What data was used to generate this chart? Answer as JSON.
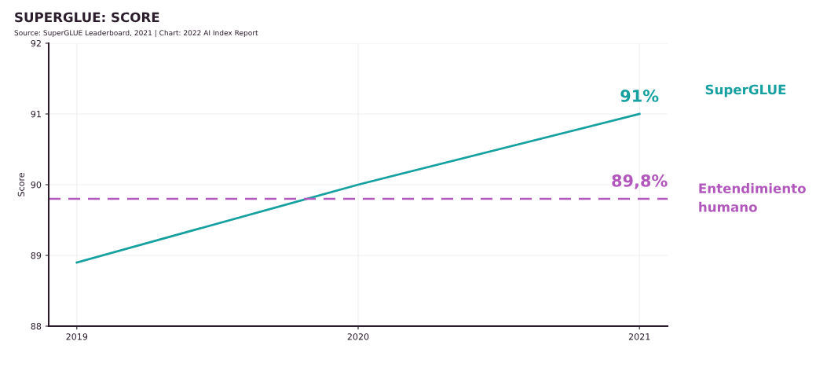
{
  "chart_data": {
    "type": "line",
    "title": "SUPERGLUE: SCORE",
    "subtitle": "Source: SuperGLUE Leaderboard, 2021 | Chart: 2022 AI Index Report",
    "ylabel": "Score",
    "x": [
      2019,
      2020,
      2021
    ],
    "series": [
      {
        "name": "SuperGLUE",
        "color": "#17a0a0",
        "values": [
          88.9,
          90.0,
          91.0
        ]
      }
    ],
    "xlim": [
      2018.9,
      2021.1
    ],
    "xticks": [
      2019,
      2020,
      2021
    ],
    "ylim": [
      88,
      92
    ],
    "yticks": [
      88,
      89,
      90,
      91,
      92
    ],
    "grid": true,
    "marker": "none",
    "line_style": "solid",
    "ref_lines": [
      {
        "axis": "y",
        "value": 89.8,
        "label": "Entendimiento humano",
        "color": "#b258bd",
        "line_style": "dashed"
      }
    ],
    "annotations": [
      {
        "text": "91%",
        "x": 2021,
        "y": 91
      },
      {
        "text": "89,8%",
        "x": 2021,
        "y": 89.8
      }
    ]
  }
}
